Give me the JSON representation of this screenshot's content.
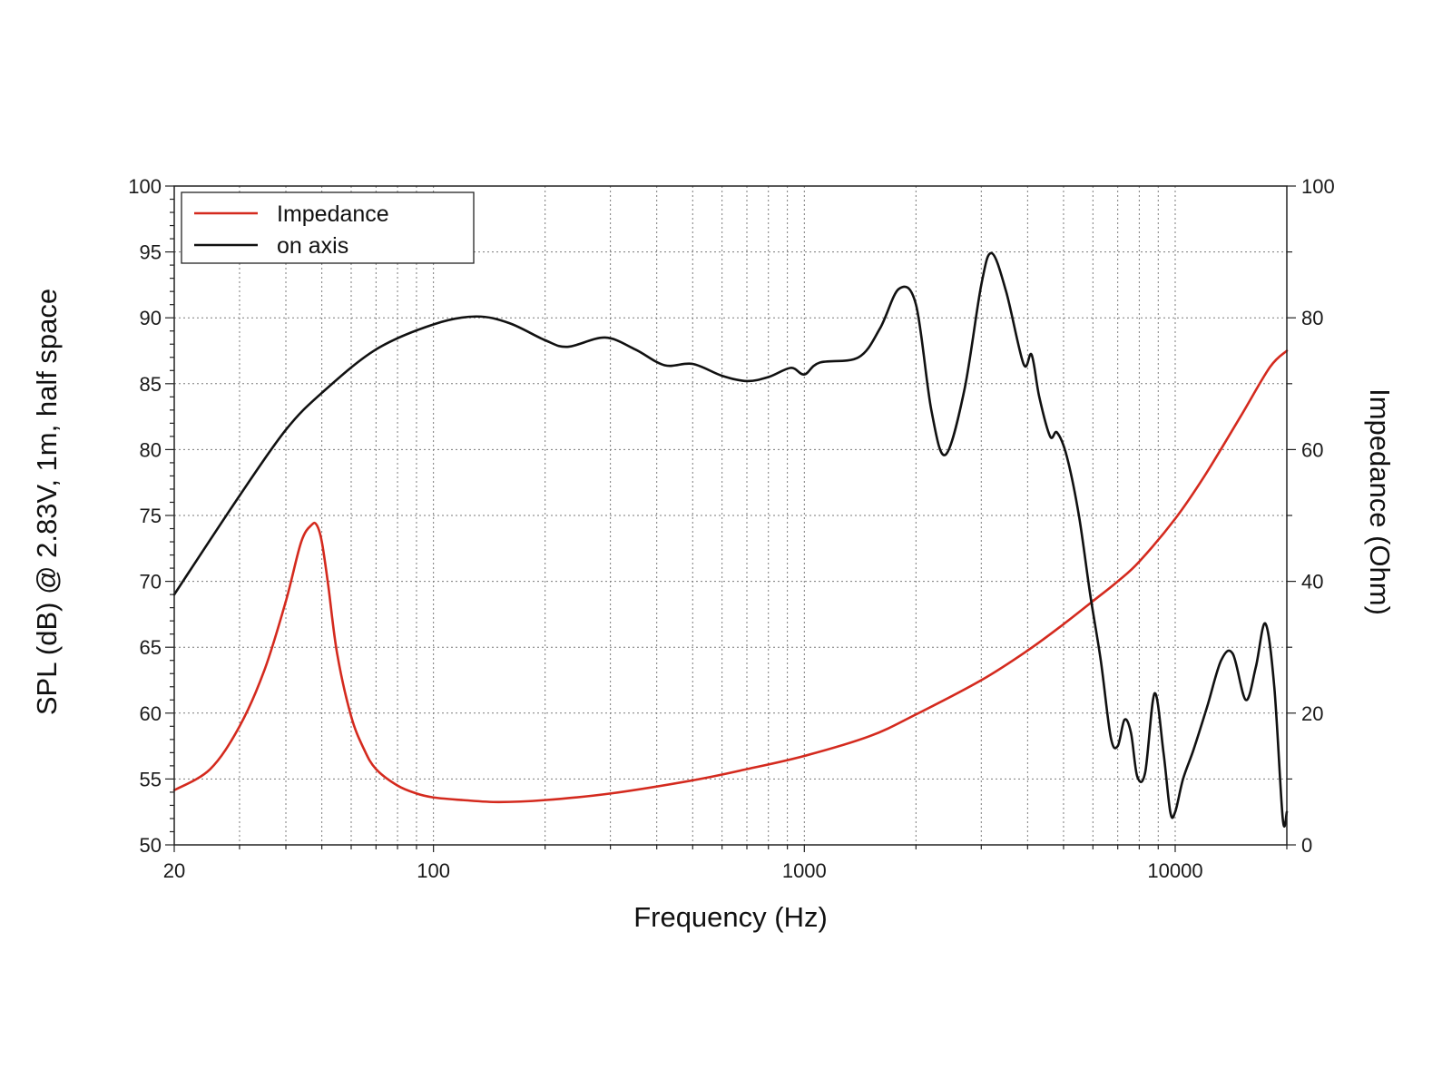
{
  "chart_data": {
    "type": "line",
    "xscale": "log",
    "xlabel": "Frequency (Hz)",
    "ylabel": "SPL (dB) @ 2.83V, 1m, half space",
    "y2label": "Impedance (Ohm)",
    "xlim": [
      20,
      20000
    ],
    "ylim": [
      50,
      100
    ],
    "y2lim": [
      0,
      100
    ],
    "xticks": [
      20,
      100,
      1000,
      10000
    ],
    "xtick_labels": [
      "20",
      "100",
      "1000",
      "10000"
    ],
    "yticks": [
      50,
      55,
      60,
      65,
      70,
      75,
      80,
      85,
      90,
      95,
      100
    ],
    "ytick_labels": [
      "50",
      "55",
      "60",
      "65",
      "70",
      "75",
      "80",
      "85",
      "90",
      "95",
      "100"
    ],
    "y2ticks": [
      0,
      20,
      40,
      60,
      80,
      100
    ],
    "y2tick_labels": [
      "0",
      "20",
      "40",
      "60",
      "80",
      "100"
    ],
    "grid": true,
    "legend_position": "top-left",
    "series": [
      {
        "name": "Impedance",
        "axis": "right",
        "color": "#d42a1e",
        "x": [
          20,
          25,
          30,
          35,
          40,
          44,
          47,
          48.5,
          50,
          52,
          55,
          60,
          65,
          70,
          80,
          90,
          100,
          120,
          150,
          200,
          300,
          500,
          700,
          1000,
          1500,
          2000,
          3000,
          4000,
          5000,
          6000,
          7000,
          8000,
          10000,
          12000,
          15000,
          18000,
          20000
        ],
        "y": [
          8.3,
          11.5,
          18.0,
          26.5,
          37.0,
          46.0,
          48.6,
          48.5,
          46.0,
          39.5,
          29.0,
          19.5,
          14.5,
          11.5,
          9.0,
          7.8,
          7.2,
          6.8,
          6.5,
          6.8,
          7.8,
          9.8,
          11.5,
          13.5,
          16.5,
          19.8,
          25.0,
          29.5,
          33.5,
          37.0,
          40.0,
          43.0,
          49.5,
          56.0,
          65.0,
          72.5,
          75.0
        ]
      },
      {
        "name": "on axis",
        "axis": "left",
        "color": "#111111",
        "x": [
          20,
          30,
          40,
          50,
          70,
          100,
          130,
          160,
          200,
          230,
          290,
          350,
          420,
          500,
          600,
          700,
          800,
          920,
          1000,
          1100,
          1400,
          1600,
          1800,
          2000,
          2200,
          2400,
          2700,
          3000,
          3200,
          3500,
          3900,
          4100,
          4300,
          4600,
          4800,
          5100,
          5500,
          5900,
          6300,
          6700,
          7000,
          7300,
          7600,
          7900,
          8300,
          8800,
          9300,
          9700,
          10000,
          10500,
          11200,
          12200,
          13300,
          14300,
          15500,
          16500,
          17500,
          18500,
          19500,
          20000
        ],
        "y": [
          69.0,
          76.5,
          81.5,
          84.3,
          87.6,
          89.5,
          90.1,
          89.6,
          88.3,
          87.8,
          88.5,
          87.6,
          86.4,
          86.5,
          85.6,
          85.2,
          85.5,
          86.2,
          85.7,
          86.6,
          87.0,
          89.2,
          92.2,
          91.0,
          83.0,
          79.6,
          84.5,
          92.5,
          94.9,
          92.0,
          86.5,
          87.2,
          84.0,
          81.0,
          81.3,
          79.5,
          75.0,
          69.0,
          64.0,
          58.2,
          57.5,
          59.5,
          58.5,
          55.2,
          55.5,
          61.5,
          57.0,
          52.5,
          52.5,
          55.0,
          57.2,
          60.5,
          64.0,
          64.5,
          61.0,
          63.5,
          66.8,
          62.0,
          52.0,
          52.5
        ]
      }
    ]
  }
}
